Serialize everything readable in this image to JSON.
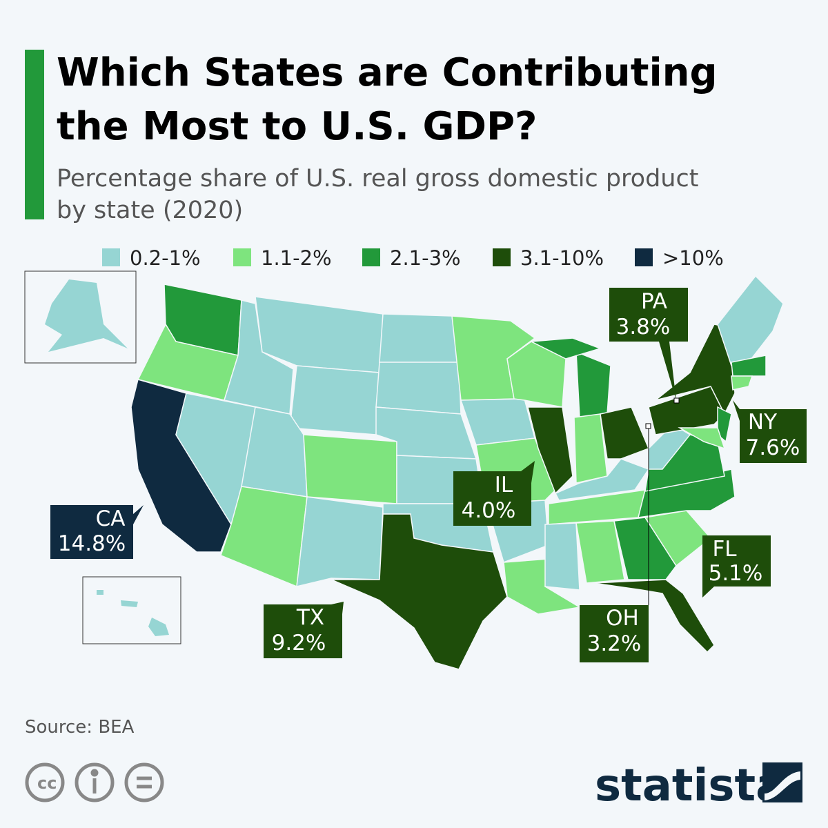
{
  "header": {
    "title_lines": [
      "Which States are Contributing",
      "the Most to U.S. GDP?"
    ],
    "subtitle_lines": [
      "Percentage share of U.S. real gross domestic product",
      "by state (2020)"
    ]
  },
  "legend": [
    {
      "label": "0.2-1%",
      "color": "#96d5d3"
    },
    {
      "label": "1.1-2%",
      "color": "#7ee47e"
    },
    {
      "label": "2.1-3%",
      "color": "#22993a"
    },
    {
      "label": "3.1-10%",
      "color": "#1e4d0a"
    },
    {
      "label": ">10%",
      "color": "#0f2a40"
    }
  ],
  "callouts": [
    {
      "state": "CA",
      "share": "14.8%"
    },
    {
      "state": "IL",
      "share": "4.0%"
    },
    {
      "state": "TX",
      "share": "9.2%"
    },
    {
      "state": "PA",
      "share": "3.8%"
    },
    {
      "state": "NY",
      "share": "7.6%"
    },
    {
      "state": "FL",
      "share": "5.1%"
    },
    {
      "state": "OH",
      "share": "3.2%"
    }
  ],
  "footer": {
    "source": "Source: BEA",
    "brand": "statista"
  }
}
